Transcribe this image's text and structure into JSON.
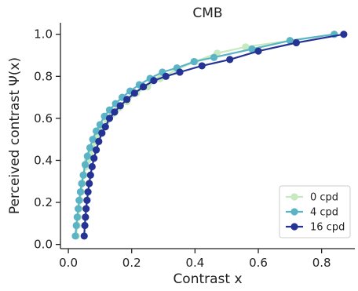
{
  "chart_data": {
    "type": "line",
    "title": "CMB",
    "xlabel": "Contrast x",
    "ylabel": "Perceived contrast Ψ(x)",
    "xlim": [
      -0.025,
      0.905
    ],
    "ylim": [
      -0.02,
      1.055
    ],
    "xticks": [
      0.0,
      0.2,
      0.4,
      0.6,
      0.8
    ],
    "xtick_labels": [
      "0.0",
      "0.2",
      "0.4",
      "0.6",
      "0.8"
    ],
    "yticks": [
      0.0,
      0.2,
      0.4,
      0.6,
      0.8,
      1.0
    ],
    "ytick_labels": [
      "0.0",
      "0.2",
      "0.4",
      "0.6",
      "0.8",
      "1.0"
    ],
    "grid": false,
    "legend_position": "lower-right",
    "series": [
      {
        "name": "0 cpd",
        "color": "#c7e9c0",
        "x": [
          0.025,
          0.028,
          0.031,
          0.034,
          0.037,
          0.041,
          0.045,
          0.05,
          0.055,
          0.061,
          0.068,
          0.076,
          0.085,
          0.095,
          0.108,
          0.122,
          0.14,
          0.16,
          0.185,
          0.215,
          0.25,
          0.29,
          0.34,
          0.4,
          0.47,
          0.56,
          0.7,
          0.84
        ],
        "y": [
          0.04,
          0.09,
          0.13,
          0.17,
          0.21,
          0.25,
          0.29,
          0.33,
          0.37,
          0.4,
          0.43,
          0.46,
          0.49,
          0.52,
          0.55,
          0.59,
          0.62,
          0.65,
          0.68,
          0.72,
          0.75,
          0.79,
          0.83,
          0.87,
          0.91,
          0.94,
          0.97,
          1.0
        ]
      },
      {
        "name": "4 cpd",
        "color": "#5ab4c6",
        "x": [
          0.022,
          0.025,
          0.028,
          0.031,
          0.034,
          0.038,
          0.042,
          0.047,
          0.053,
          0.06,
          0.068,
          0.077,
          0.088,
          0.1,
          0.114,
          0.13,
          0.149,
          0.17,
          0.195,
          0.224,
          0.258,
          0.297,
          0.343,
          0.397,
          0.46,
          0.58,
          0.7,
          0.84
        ],
        "y": [
          0.04,
          0.09,
          0.13,
          0.17,
          0.21,
          0.25,
          0.29,
          0.33,
          0.38,
          0.42,
          0.46,
          0.5,
          0.54,
          0.57,
          0.61,
          0.64,
          0.67,
          0.7,
          0.73,
          0.76,
          0.79,
          0.82,
          0.84,
          0.87,
          0.89,
          0.93,
          0.97,
          1.0
        ]
      },
      {
        "name": "16 cpd",
        "color": "#253494",
        "x": [
          0.05,
          0.052,
          0.054,
          0.056,
          0.059,
          0.062,
          0.066,
          0.07,
          0.075,
          0.081,
          0.088,
          0.096,
          0.106,
          0.117,
          0.13,
          0.146,
          0.164,
          0.185,
          0.209,
          0.237,
          0.27,
          0.308,
          0.352,
          0.422,
          0.51,
          0.6,
          0.72,
          0.87
        ],
        "y": [
          0.04,
          0.09,
          0.13,
          0.17,
          0.21,
          0.25,
          0.29,
          0.33,
          0.37,
          0.41,
          0.45,
          0.49,
          0.53,
          0.56,
          0.6,
          0.63,
          0.66,
          0.69,
          0.72,
          0.75,
          0.78,
          0.8,
          0.82,
          0.85,
          0.88,
          0.92,
          0.96,
          1.0
        ]
      }
    ]
  }
}
